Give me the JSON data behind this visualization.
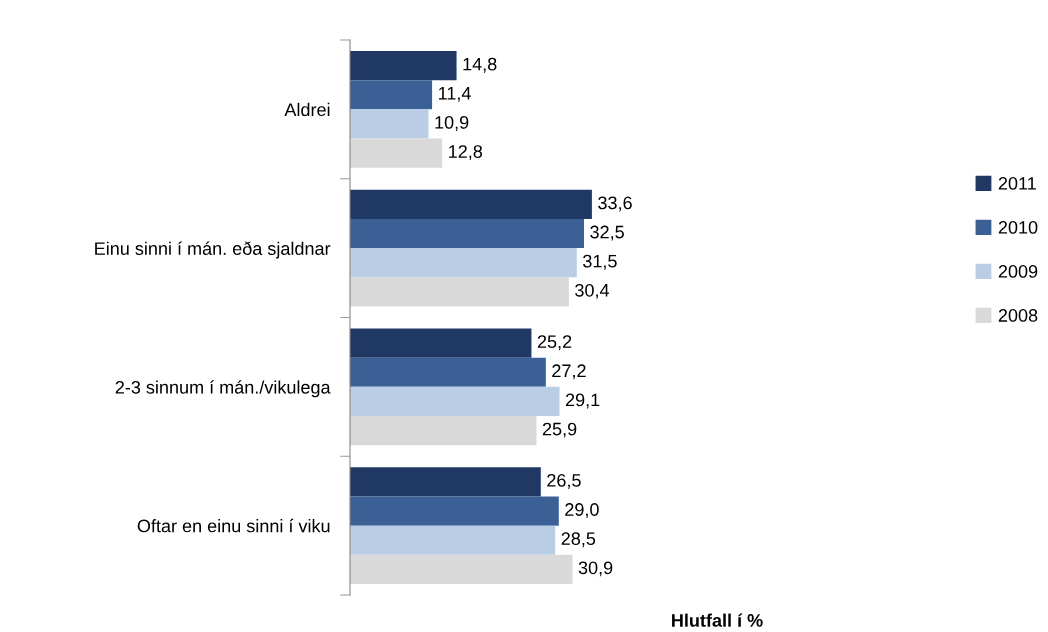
{
  "chart_data": {
    "type": "bar",
    "orientation": "horizontal",
    "xlabel": "Hlutfall í %",
    "categories": [
      "Aldrei",
      "Einu sinni í mán. eða sjaldnar",
      "2-3 sinnum í mán./vikulega",
      "Oftar en einu sinni í viku"
    ],
    "series": [
      {
        "name": "2011",
        "color": "#1f3864",
        "values": [
          14.8,
          33.6,
          25.2,
          26.5
        ],
        "value_labels": [
          "14,8",
          "33,6",
          "25,2",
          "26,5"
        ]
      },
      {
        "name": "2010",
        "color": "#3a6096",
        "values": [
          11.4,
          32.5,
          27.2,
          29.0
        ],
        "value_labels": [
          "11,4",
          "32,5",
          "27,2",
          "29,0"
        ]
      },
      {
        "name": "2009",
        "color": "#b9cde5",
        "values": [
          10.9,
          31.5,
          29.1,
          28.5
        ],
        "value_labels": [
          "10,9",
          "31,5",
          "29,1",
          "28,5"
        ]
      },
      {
        "name": "2008",
        "color": "#d9d9d9",
        "values": [
          12.8,
          30.4,
          25.9,
          30.9
        ],
        "value_labels": [
          "12,8",
          "30,4",
          "25,9",
          "30,9"
        ]
      }
    ],
    "tick_labels": "y",
    "legend": "right",
    "grid": false
  }
}
